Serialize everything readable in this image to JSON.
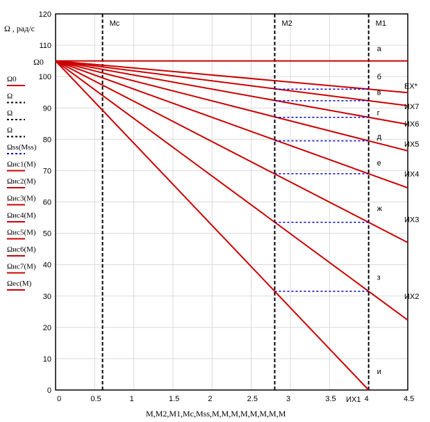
{
  "chart_data": {
    "type": "line",
    "ylabel": "Ω , рад/с",
    "xlabel": "M,M2,M1,Mc,Mss,M,M,M,M,M,M,M,M",
    "xlim": [
      0,
      4.5
    ],
    "ylim": [
      0,
      120
    ],
    "x_ticks": [
      "0",
      "0.5",
      "1",
      "1.5",
      "2",
      "2.5",
      "3",
      "3.5",
      "4",
      "4.5"
    ],
    "y_ticks": [
      "0",
      "10",
      "20",
      "30",
      "40",
      "50",
      "60",
      "70",
      "80",
      "90",
      "100",
      "110",
      "120"
    ],
    "omega0_label": "Ω0",
    "omega0": 105,
    "series": [
      {
        "name": "EX*",
        "omega_at_M1": 96,
        "color": "#cc0000"
      },
      {
        "name": "ИХ7",
        "omega_at_M1": 92.3,
        "color": "#cc0000"
      },
      {
        "name": "ИХ6",
        "omega_at_M1": 87,
        "color": "#cc0000"
      },
      {
        "name": "ИХ5",
        "omega_at_M1": 79.5,
        "color": "#cc0000"
      },
      {
        "name": "ИХ4",
        "omega_at_M1": 69,
        "color": "#cc0000"
      },
      {
        "name": "ИХ3",
        "omega_at_M1": 53.5,
        "color": "#cc0000"
      },
      {
        "name": "ИХ2",
        "omega_at_M1": 31.5,
        "color": "#cc0000"
      },
      {
        "name": "ИХ1",
        "omega_at_M1": 0,
        "color": "#cc0000"
      }
    ],
    "vertical_lines": [
      {
        "name": "Mc",
        "x": 0.6
      },
      {
        "name": "M2",
        "x": 2.8
      },
      {
        "name": "M1",
        "x": 4.0
      }
    ],
    "point_labels": [
      "а",
      "б",
      "в",
      "г",
      "д",
      "е",
      "ж",
      "з",
      "и"
    ],
    "legend": [
      {
        "text": "Ω0",
        "style": "red-solid"
      },
      {
        "text": "Ω",
        "style": "black-dashed"
      },
      {
        "text": "Ω",
        "style": "black-dashed"
      },
      {
        "text": "Ω",
        "style": "black-dashed"
      },
      {
        "text": "Ωss(Mss)",
        "style": "blue-dashed"
      },
      {
        "text": "Ωис1(M)",
        "style": "red-solid"
      },
      {
        "text": "Ωис2(M)",
        "style": "red-solid"
      },
      {
        "text": "Ωис3(M)",
        "style": "red-solid"
      },
      {
        "text": "Ωис4(M)",
        "style": "red-solid"
      },
      {
        "text": "Ωис5(M)",
        "style": "red-solid"
      },
      {
        "text": "Ωис6(M)",
        "style": "red-solid"
      },
      {
        "text": "Ωис7(M)",
        "style": "red-solid"
      },
      {
        "text": "Ωес(M)",
        "style": "red-solid"
      }
    ],
    "colors": {
      "curve": "#cc0000",
      "dashed_blue": "#0000cc",
      "axis": "#000000"
    }
  }
}
